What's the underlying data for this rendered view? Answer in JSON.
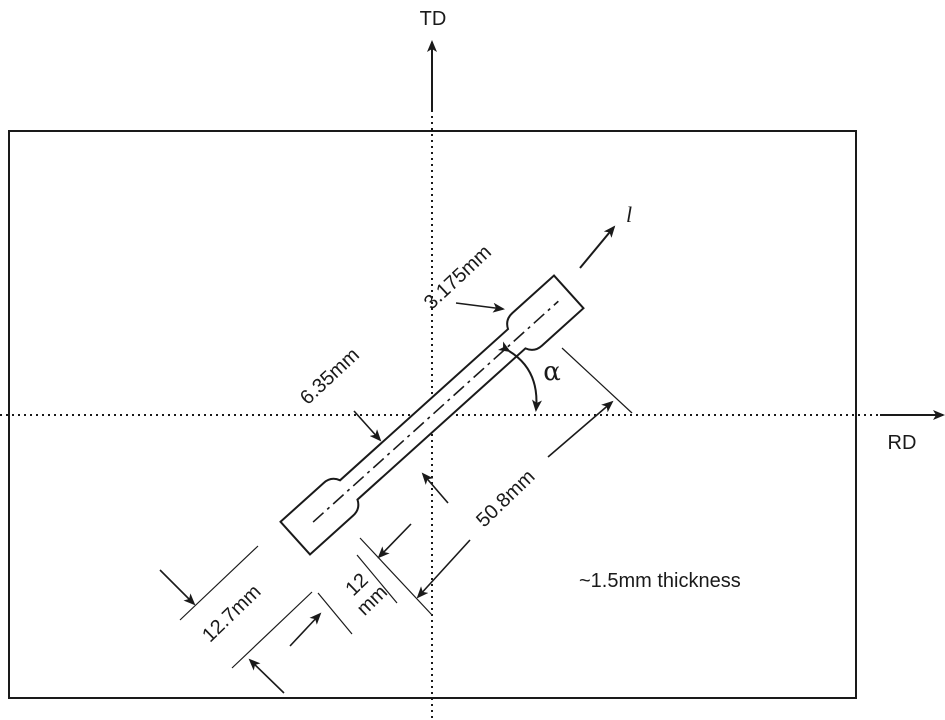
{
  "figure": {
    "axes": {
      "td_label": "TD",
      "rd_label": "RD",
      "l_label": "l",
      "alpha_label": "α"
    },
    "dimensions": {
      "neck_width": "3.175mm",
      "gauge_width": "6.35mm",
      "gauge_length": "50.8mm",
      "grip_width": "12.7mm",
      "radius_top": "12",
      "radius_bottom": "mm"
    },
    "note": "~1.5mm thickness"
  }
}
